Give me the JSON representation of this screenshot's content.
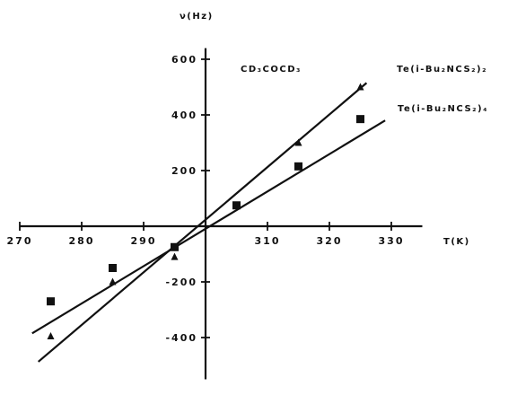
{
  "chart_data": {
    "type": "scatter",
    "xlabel": "T(K)",
    "ylabel": "ν(Hz)",
    "xlim": [
      270,
      335
    ],
    "ylim": [
      -550,
      640
    ],
    "x_ticks": [
      270,
      280,
      290,
      300,
      310,
      320,
      330
    ],
    "x_tick_labels": [
      "270",
      "280",
      "290",
      "",
      "310",
      "320",
      "330"
    ],
    "y_ticks": [
      -400,
      -200,
      200,
      400,
      600
    ],
    "y_tick_labels": [
      "-400",
      "-200",
      "200",
      "400",
      "600"
    ],
    "annotation": "CD₃COCD₃",
    "grid": false,
    "series": [
      {
        "name": "Te(i-Bu₂NCS₂)₂",
        "marker": "triangle",
        "x": [
          275,
          285,
          295,
          315,
          325
        ],
        "y": [
          -395,
          -200,
          -110,
          300,
          500
        ],
        "fit": {
          "x": [
            273,
            326
          ],
          "y": [
            -487,
            515
          ]
        }
      },
      {
        "name": "Te(i-Bu₂NCS₂)₄",
        "marker": "square",
        "x": [
          275,
          285,
          295,
          305,
          315,
          325
        ],
        "y": [
          -270,
          -150,
          -75,
          75,
          215,
          385
        ],
        "fit": {
          "x": [
            272,
            329
          ],
          "y": [
            -385,
            380
          ]
        }
      }
    ]
  }
}
